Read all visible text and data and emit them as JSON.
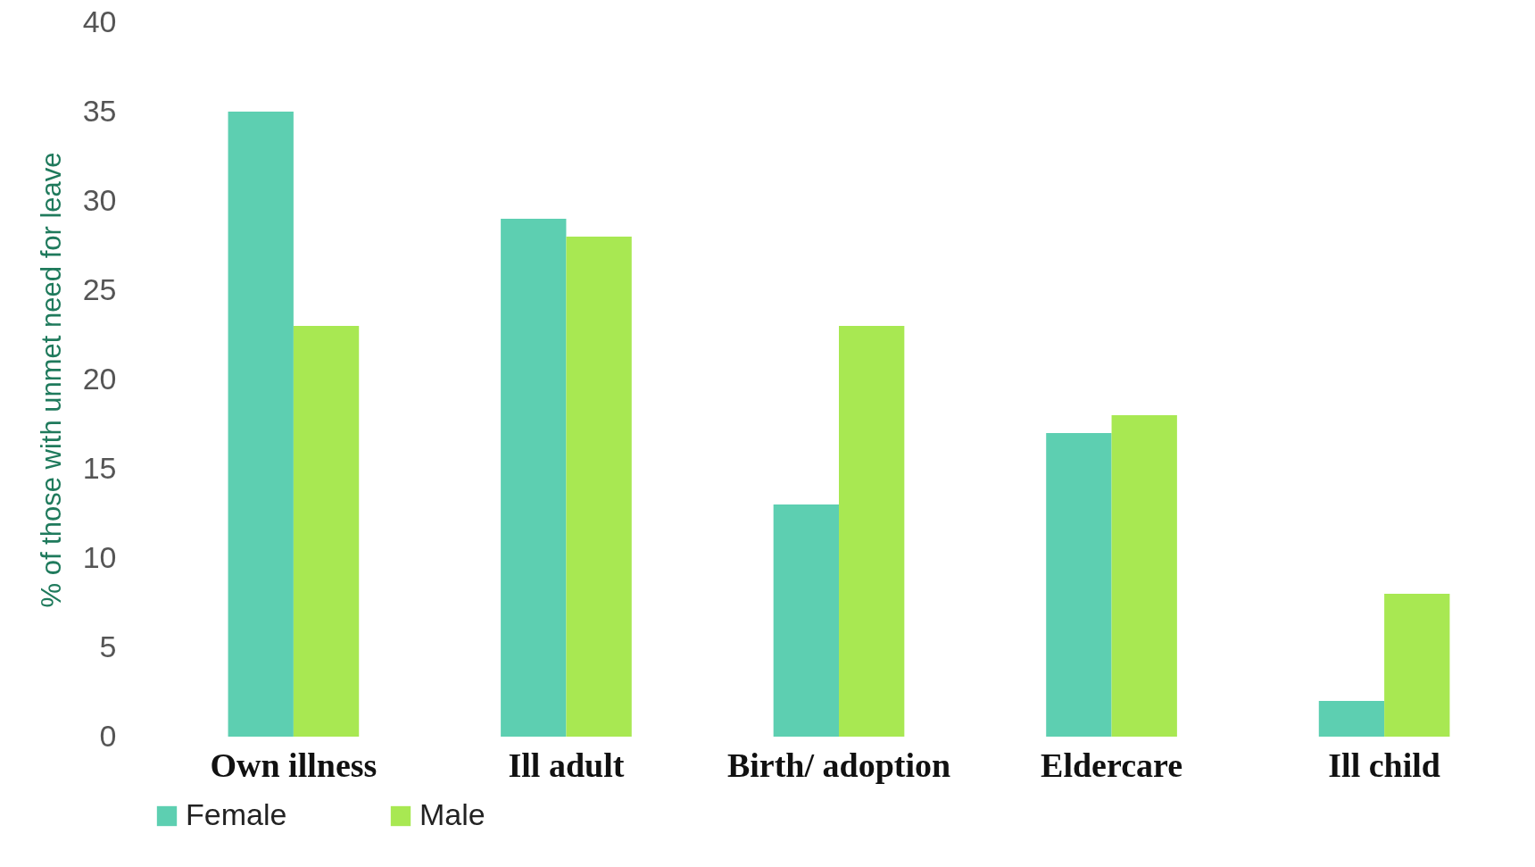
{
  "chart_data": {
    "type": "bar",
    "ylabel": "% of those with unmet need for leave",
    "categories": [
      "Own illness",
      "Ill adult",
      "Birth/ adoption",
      "Eldercare",
      "Ill child"
    ],
    "series": [
      {
        "name": "Female",
        "color": "#5dcfb1",
        "values": [
          35,
          29,
          13,
          17,
          2
        ]
      },
      {
        "name": "Male",
        "color": "#a8e852",
        "values": [
          23,
          28,
          23,
          18,
          8
        ]
      }
    ],
    "ylim": [
      0,
      40
    ],
    "yticks": [
      0,
      5,
      10,
      15,
      20,
      25,
      30,
      35,
      40
    ],
    "grid": false,
    "legend": "bottom"
  }
}
